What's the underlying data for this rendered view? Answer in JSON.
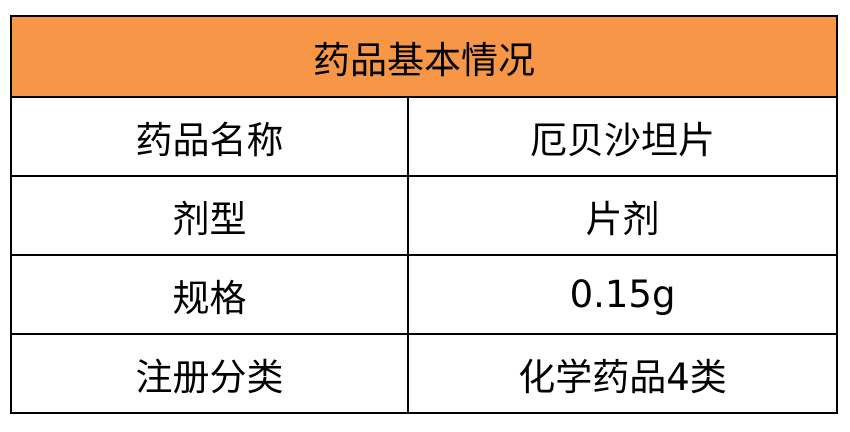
{
  "table": {
    "title": "药品基本情况",
    "header_color": "#F79646",
    "rows": [
      {
        "label": "药品名称",
        "value": "厄贝沙坦片"
      },
      {
        "label": "剂型",
        "value": "片剂"
      },
      {
        "label": "规格",
        "value": "0.15g"
      },
      {
        "label": "注册分类",
        "value": "化学药品4类"
      }
    ]
  }
}
